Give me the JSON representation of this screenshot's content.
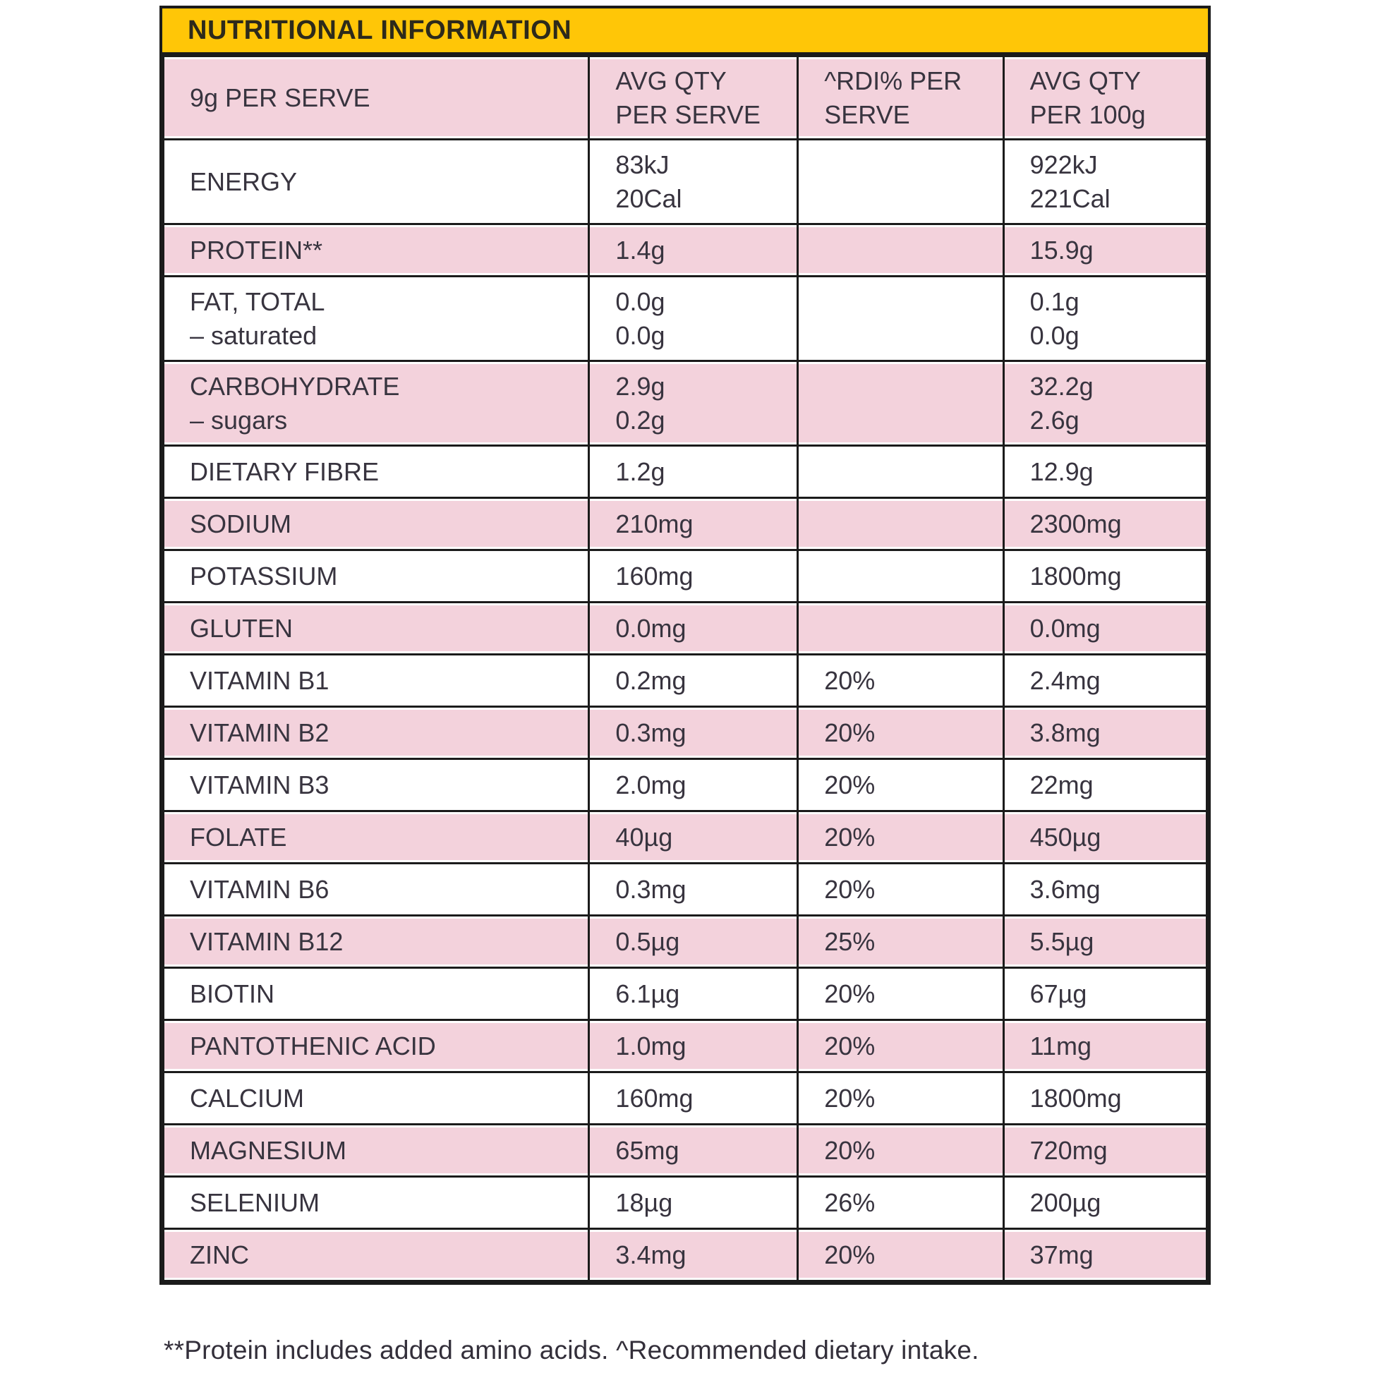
{
  "title": "NUTRITIONAL INFORMATION",
  "footnote": "**Protein includes added amino acids. ^Recommended dietary intake.",
  "colors": {
    "header_yellow": "#ffc607",
    "row_pink": "#f3d2dc",
    "border_black": "#1b1b1b",
    "text_dark": "#38343f"
  },
  "table": {
    "columns": [
      {
        "line1": "9g PER SERVE",
        "line2": ""
      },
      {
        "line1": "AVG QTY",
        "line2": "PER SERVE"
      },
      {
        "line1": "^RDI% PER",
        "line2": "SERVE"
      },
      {
        "line1": "AVG QTY",
        "line2": "PER 100g"
      }
    ],
    "rows": [
      {
        "label": "ENERGY",
        "label2": "",
        "serve": "83kJ",
        "serve2": "20Cal",
        "rdi": "",
        "per100": "922kJ",
        "per100b": "221Cal",
        "shaded": false,
        "double": true
      },
      {
        "label": "PROTEIN**",
        "label2": "",
        "serve": "1.4g",
        "serve2": "",
        "rdi": "",
        "per100": "15.9g",
        "per100b": "",
        "shaded": true,
        "double": false
      },
      {
        "label": "FAT, TOTAL",
        "label2": "– saturated",
        "serve": "0.0g",
        "serve2": "0.0g",
        "rdi": "",
        "per100": "0.1g",
        "per100b": "0.0g",
        "shaded": false,
        "double": true
      },
      {
        "label": "CARBOHYDRATE",
        "label2": "– sugars",
        "serve": "2.9g",
        "serve2": "0.2g",
        "rdi": "",
        "per100": "32.2g",
        "per100b": "2.6g",
        "shaded": true,
        "double": true
      },
      {
        "label": "DIETARY FIBRE",
        "label2": "",
        "serve": "1.2g",
        "serve2": "",
        "rdi": "",
        "per100": "12.9g",
        "per100b": "",
        "shaded": false,
        "double": false
      },
      {
        "label": "SODIUM",
        "label2": "",
        "serve": "210mg",
        "serve2": "",
        "rdi": "",
        "per100": "2300mg",
        "per100b": "",
        "shaded": true,
        "double": false
      },
      {
        "label": "POTASSIUM",
        "label2": "",
        "serve": "160mg",
        "serve2": "",
        "rdi": "",
        "per100": "1800mg",
        "per100b": "",
        "shaded": false,
        "double": false
      },
      {
        "label": "GLUTEN",
        "label2": "",
        "serve": "0.0mg",
        "serve2": "",
        "rdi": "",
        "per100": "0.0mg",
        "per100b": "",
        "shaded": true,
        "double": false
      },
      {
        "label": "VITAMIN B1",
        "label2": "",
        "serve": "0.2mg",
        "serve2": "",
        "rdi": "20%",
        "per100": "2.4mg",
        "per100b": "",
        "shaded": false,
        "double": false
      },
      {
        "label": "VITAMIN B2",
        "label2": "",
        "serve": "0.3mg",
        "serve2": "",
        "rdi": "20%",
        "per100": "3.8mg",
        "per100b": "",
        "shaded": true,
        "double": false
      },
      {
        "label": "VITAMIN B3",
        "label2": "",
        "serve": "2.0mg",
        "serve2": "",
        "rdi": "20%",
        "per100": "22mg",
        "per100b": "",
        "shaded": false,
        "double": false
      },
      {
        "label": "FOLATE",
        "label2": "",
        "serve": "40µg",
        "serve2": "",
        "rdi": "20%",
        "per100": "450µg",
        "per100b": "",
        "shaded": true,
        "double": false
      },
      {
        "label": "VITAMIN B6",
        "label2": "",
        "serve": "0.3mg",
        "serve2": "",
        "rdi": "20%",
        "per100": "3.6mg",
        "per100b": "",
        "shaded": false,
        "double": false
      },
      {
        "label": "VITAMIN B12",
        "label2": "",
        "serve": "0.5µg",
        "serve2": "",
        "rdi": "25%",
        "per100": "5.5µg",
        "per100b": "",
        "shaded": true,
        "double": false
      },
      {
        "label": "BIOTIN",
        "label2": "",
        "serve": "6.1µg",
        "serve2": "",
        "rdi": "20%",
        "per100": "67µg",
        "per100b": "",
        "shaded": false,
        "double": false
      },
      {
        "label": "PANTOTHENIC ACID",
        "label2": "",
        "serve": "1.0mg",
        "serve2": "",
        "rdi": "20%",
        "per100": "11mg",
        "per100b": "",
        "shaded": true,
        "double": false
      },
      {
        "label": "CALCIUM",
        "label2": "",
        "serve": "160mg",
        "serve2": "",
        "rdi": "20%",
        "per100": "1800mg",
        "per100b": "",
        "shaded": false,
        "double": false
      },
      {
        "label": "MAGNESIUM",
        "label2": "",
        "serve": "65mg",
        "serve2": "",
        "rdi": "20%",
        "per100": "720mg",
        "per100b": "",
        "shaded": true,
        "double": false
      },
      {
        "label": "SELENIUM",
        "label2": "",
        "serve": "18µg",
        "serve2": "",
        "rdi": "26%",
        "per100": "200µg",
        "per100b": "",
        "shaded": false,
        "double": false
      },
      {
        "label": "ZINC",
        "label2": "",
        "serve": "3.4mg",
        "serve2": "",
        "rdi": "20%",
        "per100": "37mg",
        "per100b": "",
        "shaded": true,
        "double": false
      }
    ]
  }
}
